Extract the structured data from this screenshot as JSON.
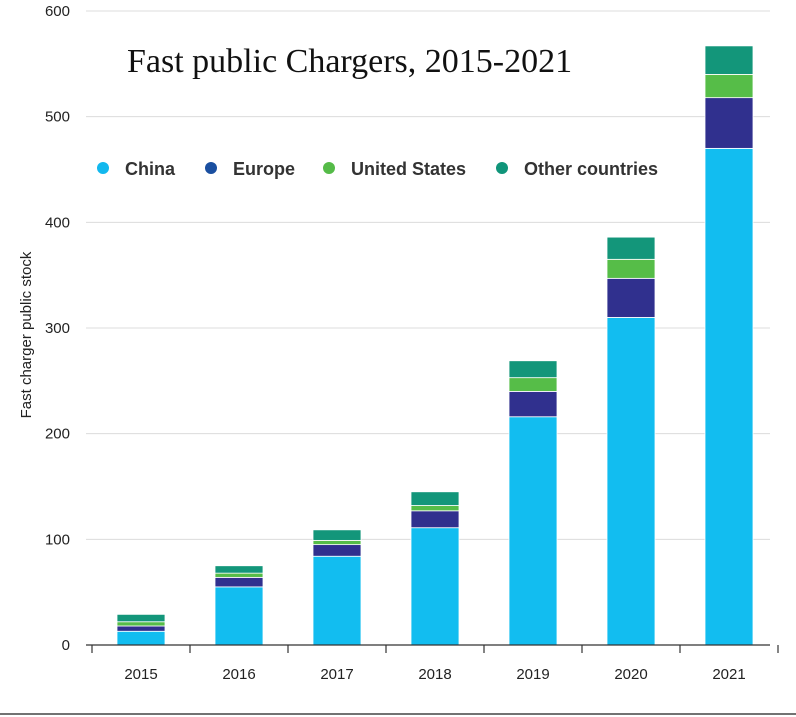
{
  "chart_data": {
    "type": "bar",
    "stacked": true,
    "title": "Fast public Chargers, 2015-2021",
    "ylabel": "Fast charger public stock",
    "xlabel": "",
    "categories": [
      "2015",
      "2016",
      "2017",
      "2018",
      "2019",
      "2020",
      "2021"
    ],
    "ylim": [
      0,
      600
    ],
    "yticks": [
      "0",
      "100",
      "200",
      "300",
      "400",
      "500",
      "600"
    ],
    "grid": true,
    "legend_position": "top-left",
    "legend": [
      {
        "name": "China",
        "color": "#12b8ee"
      },
      {
        "name": "Europe",
        "color": "#1a4fa0"
      },
      {
        "name": "United States",
        "color": "#55bb48"
      },
      {
        "name": "Other countries",
        "color": "#10957a"
      }
    ],
    "series": [
      {
        "name": "China",
        "color": "#12bdf0",
        "values": [
          13,
          55,
          84,
          111,
          216,
          310,
          470
        ]
      },
      {
        "name": "Europe",
        "color": "#30308e",
        "values": [
          5,
          9,
          11,
          16,
          24,
          37,
          48
        ]
      },
      {
        "name": "United States",
        "color": "#56bd48",
        "values": [
          4,
          4,
          4,
          5,
          13,
          18,
          22
        ]
      },
      {
        "name": "Other countries",
        "color": "#13967a",
        "values": [
          7,
          7,
          10,
          13,
          16,
          21,
          27
        ]
      }
    ]
  }
}
